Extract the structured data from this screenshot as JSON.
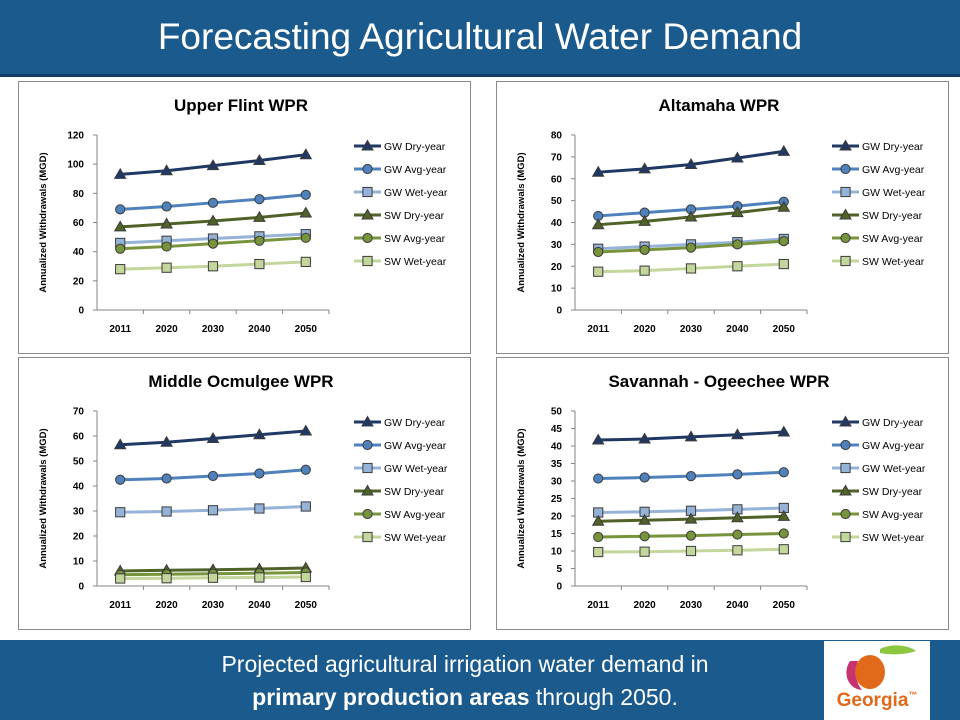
{
  "slide": {
    "title": "Forecasting Agricultural Water Demand",
    "footer_line1": "Projected agricultural irrigation water demand in",
    "footer_bold": "primary production areas",
    "footer_rest": " through 2050.",
    "logo_text": "Georgia",
    "logo_mark": "™"
  },
  "colors": {
    "header_bg": "#1b5a8c",
    "gw_dry": "#1f3864",
    "gw_avg": "#4f81bd",
    "gw_wet": "#95b3d7",
    "sw_dry": "#4f6228",
    "sw_avg": "#77933c",
    "sw_wet": "#c3d69b",
    "logo_orange": "#e06a1a",
    "logo_green": "#8dc63f",
    "logo_pink": "#c8326e"
  },
  "chart_data": [
    {
      "type": "line",
      "title": "Upper Flint WPR",
      "ylabel": "Annualized Withdrawals (MGD)",
      "xlabel": "",
      "categories": [
        "2011",
        "2020",
        "2030",
        "2040",
        "2050"
      ],
      "ylim": [
        0,
        120
      ],
      "yticks": [
        0,
        20,
        40,
        60,
        80,
        100,
        120
      ],
      "grid": false,
      "legend_position": "right",
      "series": [
        {
          "name": "GW Dry-year",
          "values": [
            93,
            95.5,
            99,
            102.5,
            106.5
          ],
          "marker": "triangle"
        },
        {
          "name": "GW Avg-year",
          "values": [
            69,
            71,
            73.5,
            76,
            79
          ],
          "marker": "circle"
        },
        {
          "name": "GW Wet-year",
          "values": [
            46,
            47.5,
            49,
            50.5,
            52
          ],
          "marker": "square"
        },
        {
          "name": "SW Dry-year",
          "values": [
            57,
            59,
            61,
            63.5,
            66.5
          ],
          "marker": "triangle"
        },
        {
          "name": "SW Avg-year",
          "values": [
            42,
            43.5,
            45.5,
            47.5,
            49.5
          ],
          "marker": "circle"
        },
        {
          "name": "SW Wet-year",
          "values": [
            28,
            29,
            30,
            31.5,
            33
          ],
          "marker": "square"
        }
      ]
    },
    {
      "type": "line",
      "title": "Altamaha WPR",
      "ylabel": "Annualized Withdrawals (MGD)",
      "xlabel": "",
      "categories": [
        "2011",
        "2020",
        "2030",
        "2040",
        "2050"
      ],
      "ylim": [
        0,
        80
      ],
      "yticks": [
        0,
        10,
        20,
        30,
        40,
        50,
        60,
        70,
        80
      ],
      "grid": false,
      "legend_position": "right",
      "series": [
        {
          "name": "GW Dry-year",
          "values": [
            63,
            64.5,
            66.5,
            69.5,
            72.5
          ],
          "marker": "triangle"
        },
        {
          "name": "GW Avg-year",
          "values": [
            43,
            44.5,
            46,
            47.5,
            49.5
          ],
          "marker": "circle"
        },
        {
          "name": "GW Wet-year",
          "values": [
            28,
            29,
            30,
            31,
            32.5
          ],
          "marker": "square"
        },
        {
          "name": "SW Dry-year",
          "values": [
            39,
            40.5,
            42.5,
            44.5,
            47
          ],
          "marker": "triangle"
        },
        {
          "name": "SW Avg-year",
          "values": [
            26.5,
            27.5,
            28.5,
            30,
            31.5
          ],
          "marker": "circle"
        },
        {
          "name": "SW Wet-year",
          "values": [
            17.5,
            18,
            19,
            20,
            21
          ],
          "marker": "square"
        }
      ]
    },
    {
      "type": "line",
      "title": "Middle Ocmulgee WPR",
      "ylabel": "Annualized Withdrawals (MGD)",
      "xlabel": "",
      "categories": [
        "2011",
        "2020",
        "2030",
        "2040",
        "2050"
      ],
      "ylim": [
        0,
        70
      ],
      "yticks": [
        0,
        10,
        20,
        30,
        40,
        50,
        60,
        70
      ],
      "grid": false,
      "legend_position": "right",
      "series": [
        {
          "name": "GW Dry-year",
          "values": [
            56.5,
            57.5,
            59,
            60.5,
            62
          ],
          "marker": "triangle"
        },
        {
          "name": "GW Avg-year",
          "values": [
            42.5,
            43,
            44,
            45,
            46.5
          ],
          "marker": "circle"
        },
        {
          "name": "GW Wet-year",
          "values": [
            29.5,
            29.8,
            30.3,
            31,
            31.8
          ],
          "marker": "square"
        },
        {
          "name": "SW Dry-year",
          "values": [
            6,
            6.3,
            6.5,
            6.8,
            7.2
          ],
          "marker": "triangle"
        },
        {
          "name": "SW Avg-year",
          "values": [
            4.5,
            4.7,
            4.9,
            5.1,
            5.4
          ],
          "marker": "circle"
        },
        {
          "name": "SW Wet-year",
          "values": [
            3,
            3.1,
            3.3,
            3.4,
            3.6
          ],
          "marker": "square"
        }
      ]
    },
    {
      "type": "line",
      "title": "Savannah - Ogeechee WPR",
      "ylabel": "Annualized Withdrawals (MGD)",
      "xlabel": "",
      "categories": [
        "2011",
        "2020",
        "2030",
        "2040",
        "2050"
      ],
      "ylim": [
        0,
        50
      ],
      "yticks": [
        0,
        5,
        10,
        15,
        20,
        25,
        30,
        35,
        40,
        45,
        50
      ],
      "grid": false,
      "legend_position": "right",
      "series": [
        {
          "name": "GW Dry-year",
          "values": [
            41.7,
            42,
            42.6,
            43.2,
            44
          ],
          "marker": "triangle"
        },
        {
          "name": "GW Avg-year",
          "values": [
            30.7,
            31,
            31.4,
            31.9,
            32.5
          ],
          "marker": "circle"
        },
        {
          "name": "GW Wet-year",
          "values": [
            21,
            21.2,
            21.5,
            21.9,
            22.3
          ],
          "marker": "square"
        },
        {
          "name": "SW Dry-year",
          "values": [
            18.5,
            18.8,
            19.1,
            19.5,
            19.9
          ],
          "marker": "triangle"
        },
        {
          "name": "SW Avg-year",
          "values": [
            14,
            14.2,
            14.4,
            14.7,
            15
          ],
          "marker": "circle"
        },
        {
          "name": "SW Wet-year",
          "values": [
            9.7,
            9.8,
            10,
            10.2,
            10.5
          ],
          "marker": "square"
        }
      ]
    }
  ]
}
